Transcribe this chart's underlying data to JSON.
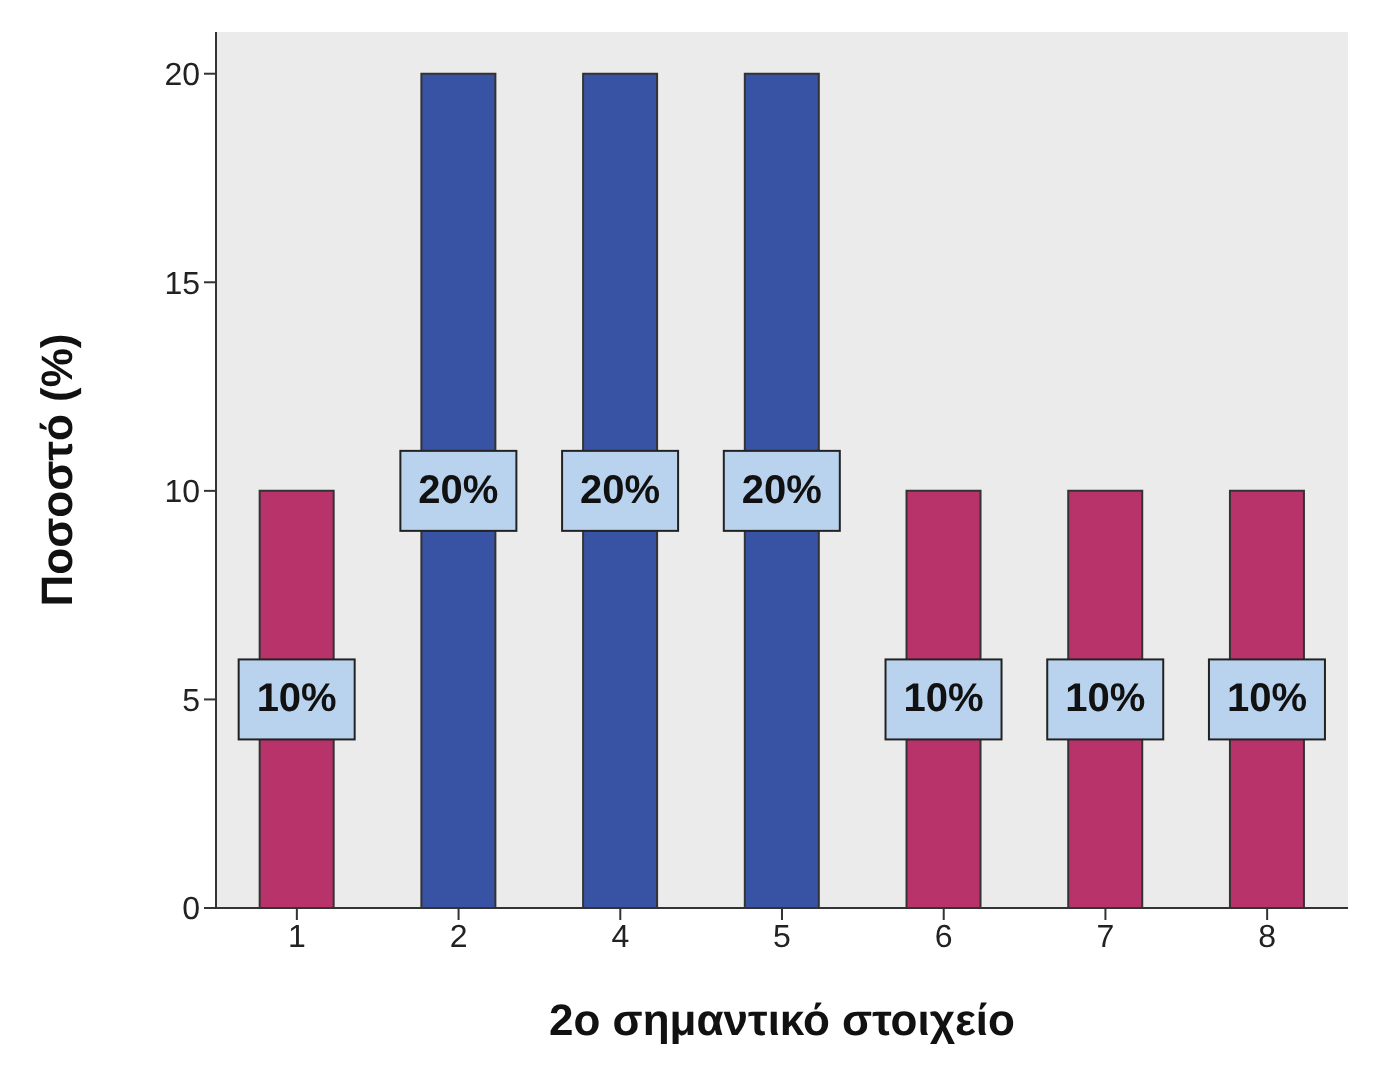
{
  "chart_data": {
    "type": "bar",
    "xlabel": "2ο σημαντικό στοιχείο",
    "ylabel": "Ποσοστό (%)",
    "categories": [
      "1",
      "2",
      "4",
      "5",
      "6",
      "7",
      "8"
    ],
    "values": [
      10,
      20,
      20,
      20,
      10,
      10,
      10
    ],
    "colors": [
      "#b8336a",
      "#3953a4",
      "#3953a4",
      "#3953a4",
      "#b8336a",
      "#b8336a",
      "#b8336a"
    ],
    "value_labels": [
      "10%",
      "20%",
      "20%",
      "20%",
      "10%",
      "10%",
      "10%"
    ],
    "ylim": [
      0,
      21
    ],
    "yticks": [
      0,
      5,
      10,
      15,
      20
    ],
    "grid": false,
    "legend": false
  }
}
